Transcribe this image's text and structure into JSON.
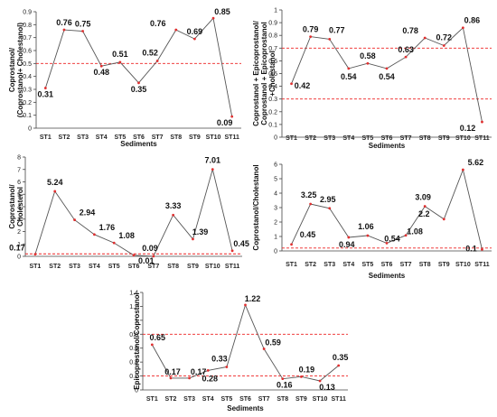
{
  "chart_data": [
    {
      "type": "line",
      "categories": [
        "ST1",
        "ST2",
        "ST3",
        "ST4",
        "ST5",
        "ST6",
        "ST7",
        "ST8",
        "ST9",
        "ST10",
        "ST11"
      ],
      "values": [
        0.31,
        0.76,
        0.75,
        0.48,
        0.51,
        0.35,
        0.52,
        0.76,
        0.69,
        0.85,
        0.09
      ],
      "value_labels": [
        "0.31",
        "0.76",
        "0.75",
        "0.48",
        "0.51",
        "0.35",
        "0.52",
        "0.76",
        "0.69",
        "0.85",
        "0.09"
      ],
      "xlabel": "Sediments",
      "ylabel": [
        "Coprostanol/",
        "(Coprostanol+ Cholestanol)"
      ],
      "ylim": [
        0,
        0.9
      ],
      "yticks": [
        "0",
        "0.1",
        "0.2",
        "0.3",
        "0.4",
        "0.5",
        "0.6",
        "0.7",
        "0.8",
        "0.9"
      ],
      "thresholds": [
        0.5
      ],
      "line_color": "#555555",
      "marker_color": "#e03030",
      "threshold_color": "#ee2222"
    },
    {
      "type": "line",
      "categories": [
        "ST1",
        "ST2",
        "ST3",
        "ST4",
        "ST5",
        "ST6",
        "ST7",
        "ST8",
        "ST9",
        "ST10",
        "ST11"
      ],
      "values": [
        0.42,
        0.79,
        0.77,
        0.54,
        0.58,
        0.54,
        0.63,
        0.78,
        0.72,
        0.86,
        0.12
      ],
      "value_labels": [
        "0.42",
        "0.79",
        "0.77",
        "0.54",
        "0.58",
        "0.54",
        "0.63",
        "0.78",
        "0.72",
        "0.86",
        "0.12"
      ],
      "xlabel": "Sediments",
      "ylabel": [
        "Coprostanol + Epicoprostanol/",
        "Coprostanol + Epicoprostanol",
        "+Cholestanol"
      ],
      "ylim": [
        0,
        1
      ],
      "yticks": [
        "0",
        "0.1",
        "0.2",
        "0.3",
        "0.4",
        "0.5",
        "0.6",
        "0.7",
        "0.8",
        "0.9",
        "1"
      ],
      "thresholds": [
        0.7,
        0.3
      ],
      "line_color": "#555555",
      "marker_color": "#e03030",
      "threshold_color": "#ee2222"
    },
    {
      "type": "line",
      "categories": [
        "ST1",
        "ST2",
        "ST3",
        "ST4",
        "ST5",
        "ST6",
        "ST7",
        "ST8",
        "ST9",
        "ST10",
        "ST11"
      ],
      "values": [
        0.17,
        5.24,
        2.94,
        1.76,
        1.08,
        0.09,
        0.01,
        3.33,
        1.39,
        7.01,
        0.45
      ],
      "value_labels": [
        "0.17",
        "5.24",
        "2.94",
        "1.76",
        "1.08",
        "0.09",
        "0.01",
        "3.33",
        "1.39",
        "7.01",
        "0.45"
      ],
      "xlabel": "",
      "ylabel": [
        "Coprostanol/",
        "Cholesterol"
      ],
      "ylim": [
        0,
        8
      ],
      "yticks": [
        "0",
        "1",
        "2",
        "3",
        "4",
        "5",
        "6",
        "7",
        "8"
      ],
      "thresholds": [
        0.2
      ],
      "line_color": "#555555",
      "marker_color": "#e03030",
      "threshold_color": "#ee2222"
    },
    {
      "type": "line",
      "categories": [
        "ST1",
        "ST2",
        "ST3",
        "ST4",
        "ST5",
        "ST6",
        "ST7",
        "ST8",
        "ST9",
        "ST10",
        "ST11"
      ],
      "values": [
        0.45,
        3.25,
        2.95,
        0.94,
        1.06,
        0.54,
        1.08,
        3.09,
        2.2,
        5.62,
        0.1
      ],
      "value_labels": [
        "0.45",
        "3.25",
        "2.95",
        "0.94",
        "1.06",
        "0.54",
        "1.08",
        "3.09",
        "2.2",
        "5.62",
        "0.1"
      ],
      "xlabel": "Sediments",
      "ylabel": [
        "Coprostanol/Cholestanol"
      ],
      "ylim": [
        0,
        6
      ],
      "yticks": [
        "0",
        "1",
        "2",
        "3",
        "4",
        "5",
        "6"
      ],
      "thresholds": [
        0.2
      ],
      "line_color": "#555555",
      "marker_color": "#e03030",
      "threshold_color": "#ee2222"
    },
    {
      "type": "line",
      "categories": [
        "ST1",
        "ST2",
        "ST3",
        "ST4",
        "ST5",
        "ST6",
        "ST7",
        "ST8",
        "ST9",
        "ST10",
        "ST11"
      ],
      "values": [
        0.65,
        0.17,
        0.17,
        0.28,
        0.33,
        1.22,
        0.59,
        0.16,
        0.19,
        0.13,
        0.35
      ],
      "value_labels": [
        "0.65",
        "0.17",
        "0.17",
        "0.28",
        "0.33",
        "1.22",
        "0.59",
        "0.16",
        "0.19",
        "0.13",
        "0.35"
      ],
      "xlabel": "Sediments",
      "ylabel": [
        "Epicoprostanol/Coprostanol"
      ],
      "ylim": [
        0,
        1.4
      ],
      "yticks": [
        "0",
        "0.2",
        "0.4",
        "0.6",
        "0.8",
        "1",
        "1.2",
        "1.4"
      ],
      "thresholds": [
        0.8,
        0.2
      ],
      "line_color": "#555555",
      "marker_color": "#e03030",
      "threshold_color": "#ee2222"
    }
  ]
}
